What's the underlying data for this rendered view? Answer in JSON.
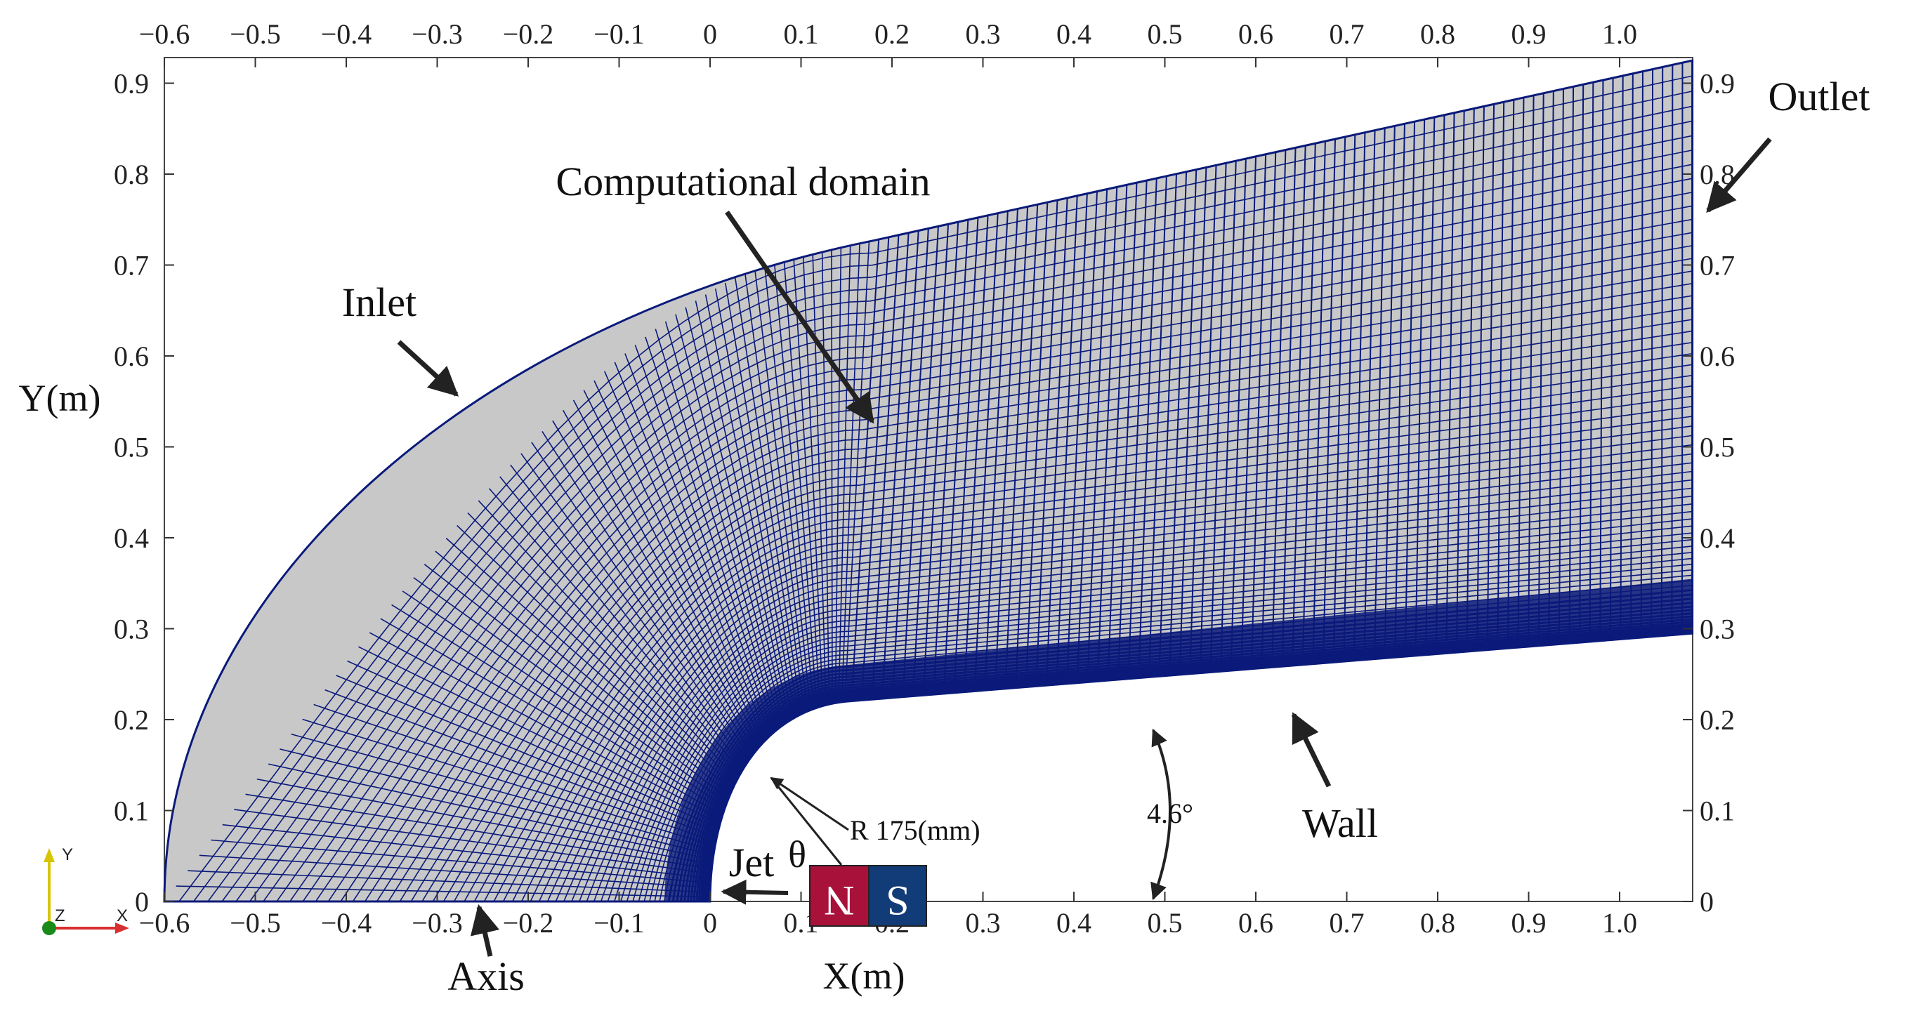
{
  "figure": {
    "x_axis_label": "X(m)",
    "y_axis_label": "Y(m)",
    "x_ticks": [
      "−0.6",
      "−0.5",
      "−0.4",
      "−0.3",
      "−0.2",
      "−0.1",
      "0",
      "0.1",
      "0.2",
      "0.3",
      "0.4",
      "0.5",
      "0.6",
      "0.7",
      "0.8",
      "0.9",
      "1.0"
    ],
    "x_tick_values": [
      -0.6,
      -0.5,
      -0.4,
      -0.3,
      -0.2,
      -0.1,
      0,
      0.1,
      0.2,
      0.3,
      0.4,
      0.5,
      0.6,
      0.7,
      0.8,
      0.9,
      1.0
    ],
    "y_ticks": [
      "0",
      "0.1",
      "0.2",
      "0.3",
      "0.4",
      "0.5",
      "0.6",
      "0.7",
      "0.8",
      "0.9"
    ],
    "y_tick_values": [
      0,
      0.1,
      0.2,
      0.3,
      0.4,
      0.5,
      0.6,
      0.7,
      0.8,
      0.9
    ],
    "x_range": [
      -0.6,
      1.08
    ],
    "y_range": [
      0,
      0.92
    ]
  },
  "domain_geometry": {
    "inlet_radius_m": 0.6,
    "nozzle_radius_mm": 175,
    "wall_angle_deg": 4.6,
    "outlet_x_m": 1.08,
    "mesh_color": "#0a1a7a",
    "fill_color": "#c8c8c8"
  },
  "labels": {
    "inlet": "Inlet",
    "outlet": "Outlet",
    "domain": "Computational domain",
    "wall": "Wall",
    "axis": "Axis",
    "jet": "Jet",
    "theta": "θ",
    "radius": "R 175(mm)",
    "angle": "4.6°"
  },
  "magnet": {
    "north": "N",
    "south": "S",
    "north_color": "#a8123a",
    "south_color": "#123c78"
  },
  "triad": {
    "x": "X",
    "y": "Y",
    "z": "Z"
  }
}
